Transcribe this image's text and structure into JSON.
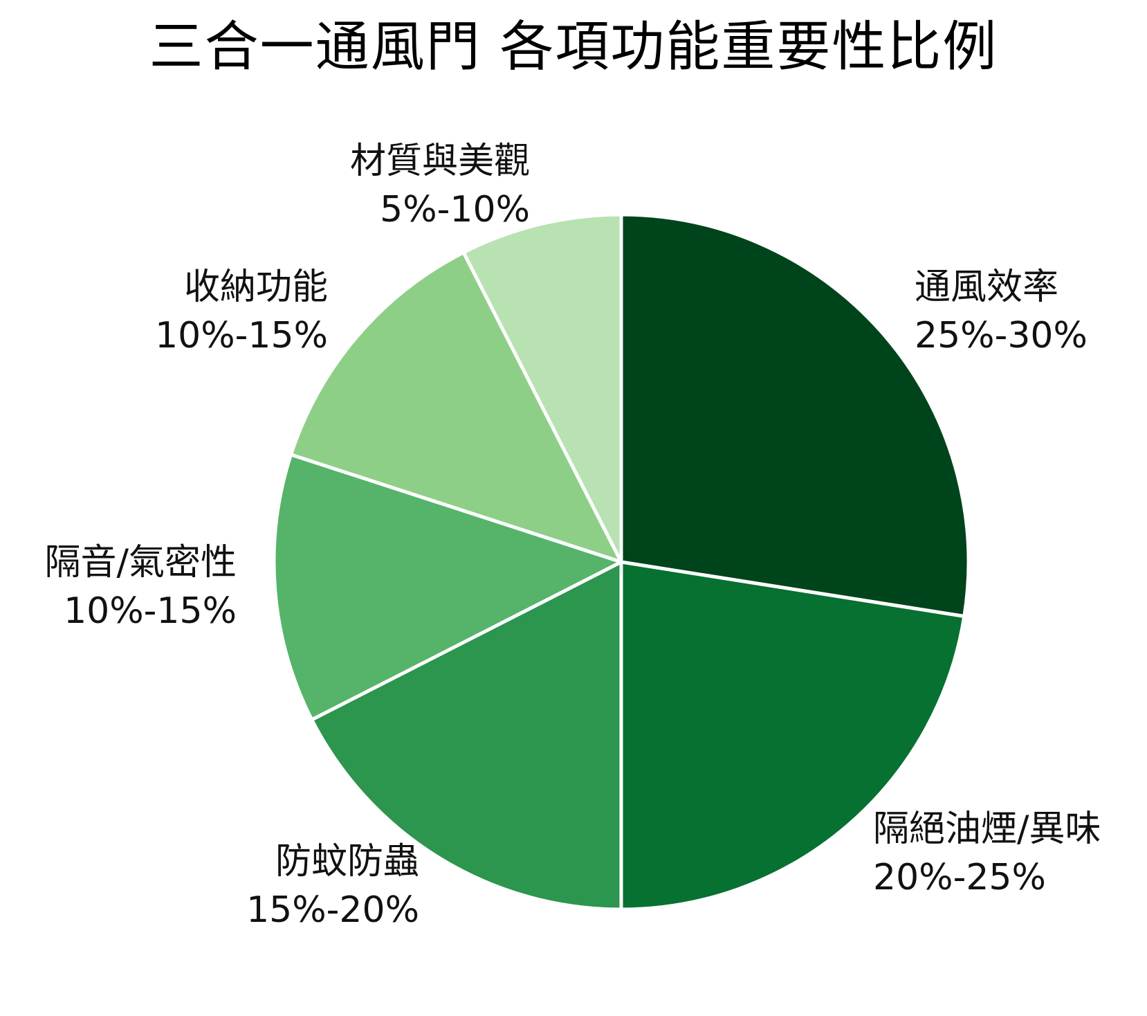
{
  "chart_data": {
    "type": "pie",
    "title": "三合一通風門 各項功能重要性比例",
    "start_angle_deg": 0,
    "direction": "clockwise",
    "slices": [
      {
        "name": "通風效率",
        "label": "25%-30%",
        "value": 27.5,
        "color": "#00441B"
      },
      {
        "name": "隔絕油煙/異味",
        "label": "20%-25%",
        "value": 22.5,
        "color": "#067131"
      },
      {
        "name": "防蚊防蟲",
        "label": "15%-20%",
        "value": 17.5,
        "color": "#2C954E"
      },
      {
        "name": "隔音/氣密性",
        "label": "10%-15%",
        "value": 12.5,
        "color": "#55B46A"
      },
      {
        "name": "收納功能",
        "label": "10%-15%",
        "value": 12.5,
        "color": "#8ECF88"
      },
      {
        "name": "材質與美觀",
        "label": "5%-10%",
        "value": 7.5,
        "color": "#B8E2B1"
      }
    ],
    "legend": "none",
    "grid": false
  }
}
